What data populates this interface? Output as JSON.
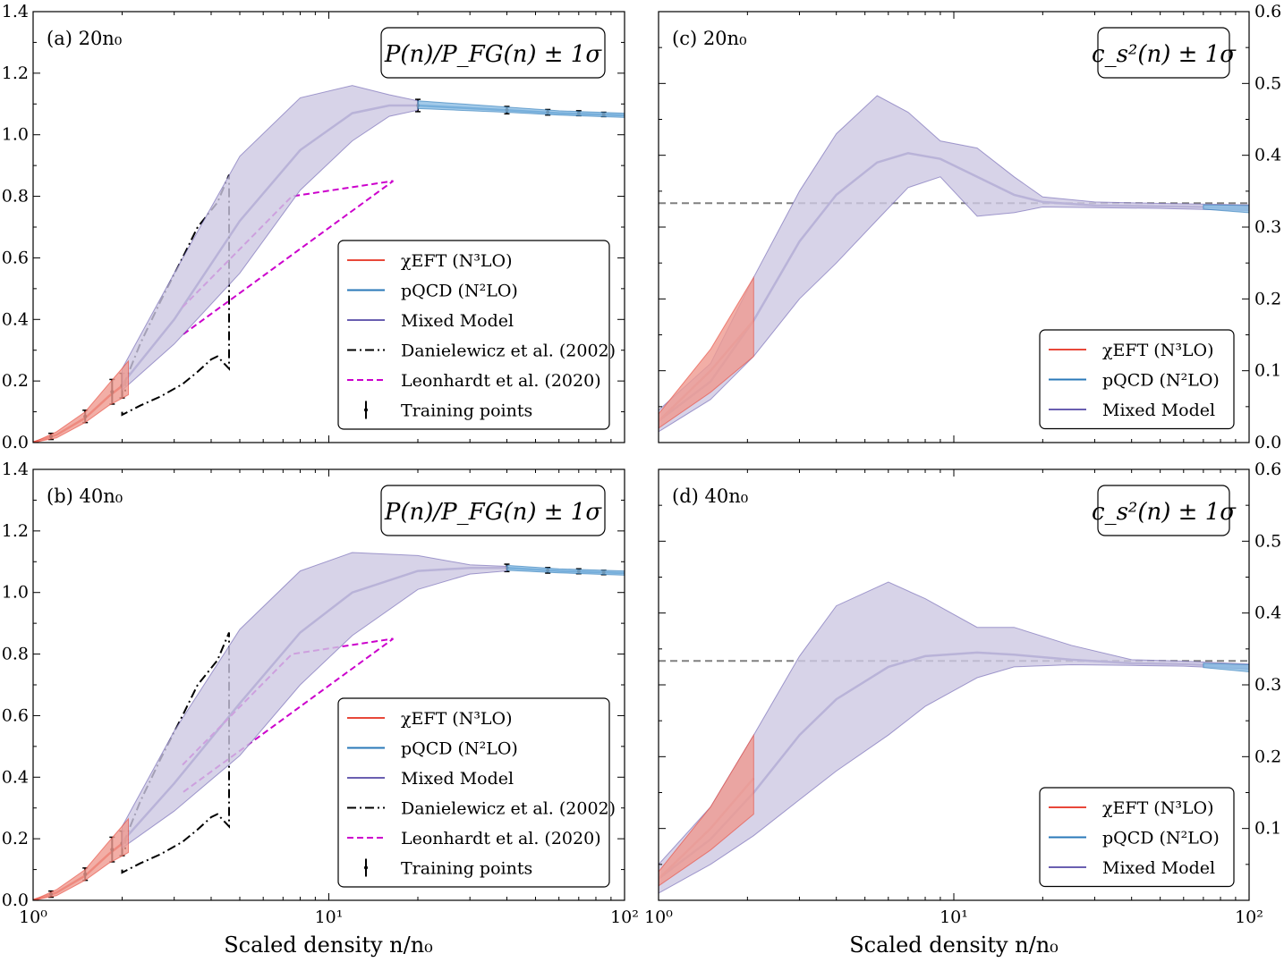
{
  "figure": {
    "xlabel": "Scaled density n/n₀",
    "x_tick_labels": [
      "10⁰",
      "10¹",
      "10²"
    ]
  },
  "colors": {
    "chieft": "#e8483a",
    "chieft_fill": "#ef9a90",
    "pqcd": "#2a78b8",
    "pqcd_fill": "#8bbde4",
    "mixed": "#6a5fb0",
    "mixed_fill": "#cdc8e2",
    "danielewicz": "#000000",
    "leonhardt": "#cc00cc",
    "conformal": "#808080"
  },
  "panels": [
    {
      "id": "a",
      "label": "(a) 20n₀",
      "box_title": "P(n)/P_FG(n) ± 1σ"
    },
    {
      "id": "c",
      "label": "(c) 20n₀",
      "box_title": "c_s²(n) ± 1σ"
    },
    {
      "id": "b",
      "label": "(b) 40n₀",
      "box_title": "P(n)/P_FG(n) ± 1σ"
    },
    {
      "id": "d",
      "label": "(d) 40n₀",
      "box_title": "c_s²(n) ± 1σ"
    }
  ],
  "legend_pressure": [
    "χEFT (N³LO)",
    "pQCD (N²LO)",
    "Mixed Model",
    "Danielewicz et al. (2002)",
    "Leonhardt et al. (2020)",
    "Training points"
  ],
  "legend_sound": [
    "χEFT (N³LO)",
    "pQCD (N²LO)",
    "Mixed Model"
  ],
  "chart_data": [
    {
      "panel": "a",
      "type": "line",
      "xscale": "log",
      "xlim": [
        1,
        100
      ],
      "ylim": [
        0,
        1.4
      ],
      "y_ticks": [
        "0.0",
        "0.2",
        "0.4",
        "0.6",
        "0.8",
        "1.0",
        "1.2",
        "1.4"
      ],
      "series": [
        {
          "name": "Mixed Model",
          "x": [
            2,
            3,
            5,
            8,
            12,
            16,
            20
          ],
          "y": [
            0.19,
            0.4,
            0.72,
            0.95,
            1.07,
            1.095,
            1.095
          ],
          "lower": [
            0.17,
            0.32,
            0.55,
            0.82,
            0.98,
            1.06,
            1.08
          ],
          "upper": [
            0.24,
            0.55,
            0.93,
            1.12,
            1.16,
            1.13,
            1.11
          ]
        },
        {
          "name": "χEFT (N³LO)",
          "x": [
            1,
            1.2,
            1.5,
            1.8,
            2.1
          ],
          "y": [
            0.0,
            0.025,
            0.08,
            0.15,
            0.2
          ],
          "lower": [
            0.0,
            0.015,
            0.065,
            0.12,
            0.155
          ],
          "upper": [
            0.0,
            0.035,
            0.1,
            0.19,
            0.265
          ]
        },
        {
          "name": "pQCD (N²LO)",
          "x": [
            20,
            40,
            60,
            100
          ],
          "y": [
            1.095,
            1.08,
            1.07,
            1.063
          ],
          "lower": [
            1.085,
            1.073,
            1.064,
            1.056
          ],
          "upper": [
            1.11,
            1.09,
            1.078,
            1.07
          ]
        },
        {
          "name": "Danielewicz et al. (2002)",
          "x": [
            2.0,
            2.0,
            2.3,
            2.7,
            3.2,
            3.6,
            4.0,
            4.2,
            4.6,
            4.6,
            4.2,
            3.6,
            3.2,
            2.7,
            2.3,
            2.05,
            2.05
          ],
          "y": [
            0.1,
            0.09,
            0.12,
            0.15,
            0.19,
            0.23,
            0.27,
            0.28,
            0.24,
            0.87,
            0.78,
            0.7,
            0.6,
            0.46,
            0.32,
            0.2,
            0.16
          ]
        },
        {
          "name": "Leonhardt et al. (2020)",
          "x": [
            3.2,
            7.5,
            16.5,
            3.2
          ],
          "y": [
            0.44,
            0.8,
            0.85,
            0.35
          ]
        },
        {
          "name": "Training points",
          "x": [
            1.15,
            1.5,
            1.85,
            2.0,
            20,
            40,
            55,
            70,
            85
          ],
          "y": [
            0.02,
            0.085,
            0.165,
            0.185,
            1.095,
            1.08,
            1.073,
            1.07,
            1.066
          ],
          "err": [
            0.01,
            0.02,
            0.04,
            0.04,
            0.02,
            0.012,
            0.009,
            0.008,
            0.007
          ]
        }
      ]
    },
    {
      "panel": "c",
      "type": "line",
      "xscale": "log",
      "xlim": [
        1,
        100
      ],
      "ylim": [
        0,
        0.6
      ],
      "y_ticks": [
        "0.0",
        "0.1",
        "0.2",
        "0.3",
        "0.4",
        "0.5",
        "0.6"
      ],
      "conformal_limit": 0.3333,
      "series": [
        {
          "name": "Mixed Model",
          "x": [
            1,
            1.5,
            2.1,
            3,
            4,
            5.5,
            7,
            9,
            12,
            16,
            20,
            30,
            50,
            100
          ],
          "y": [
            0.03,
            0.085,
            0.17,
            0.28,
            0.345,
            0.39,
            0.403,
            0.395,
            0.37,
            0.345,
            0.335,
            0.33,
            0.329,
            0.327
          ],
          "lower": [
            0.015,
            0.06,
            0.12,
            0.2,
            0.25,
            0.31,
            0.355,
            0.37,
            0.315,
            0.32,
            0.328,
            0.327,
            0.326,
            0.323
          ],
          "upper": [
            0.045,
            0.11,
            0.23,
            0.35,
            0.43,
            0.483,
            0.46,
            0.42,
            0.41,
            0.37,
            0.342,
            0.335,
            0.333,
            0.331
          ]
        },
        {
          "name": "χEFT (N³LO)",
          "x": [
            1,
            1.5,
            2.1
          ],
          "y": [
            0.03,
            0.1,
            0.17
          ],
          "lower": [
            0.02,
            0.07,
            0.12
          ],
          "upper": [
            0.04,
            0.13,
            0.23
          ]
        },
        {
          "name": "pQCD (N²LO)",
          "x": [
            70,
            100
          ],
          "y": [
            0.328,
            0.325
          ],
          "lower": [
            0.325,
            0.32
          ],
          "upper": [
            0.331,
            0.33
          ]
        }
      ]
    },
    {
      "panel": "b",
      "type": "line",
      "xscale": "log",
      "xlim": [
        1,
        100
      ],
      "ylim": [
        0,
        1.4
      ],
      "y_ticks": [
        "0.0",
        "0.2",
        "0.4",
        "0.6",
        "0.8",
        "1.0",
        "1.2",
        "1.4"
      ],
      "series": [
        {
          "name": "Mixed Model",
          "x": [
            2,
            3,
            5,
            8,
            12,
            20,
            30,
            40
          ],
          "y": [
            0.19,
            0.38,
            0.64,
            0.87,
            1.0,
            1.07,
            1.08,
            1.08
          ],
          "lower": [
            0.17,
            0.29,
            0.47,
            0.7,
            0.86,
            1.01,
            1.06,
            1.07
          ],
          "upper": [
            0.24,
            0.55,
            0.88,
            1.07,
            1.13,
            1.12,
            1.09,
            1.085
          ]
        },
        {
          "name": "χEFT (N³LO)",
          "x": [
            1,
            1.2,
            1.5,
            1.8,
            2.1
          ],
          "y": [
            0.0,
            0.025,
            0.08,
            0.15,
            0.2
          ],
          "lower": [
            0.0,
            0.015,
            0.065,
            0.12,
            0.155
          ],
          "upper": [
            0.0,
            0.035,
            0.1,
            0.19,
            0.265
          ]
        },
        {
          "name": "pQCD (N²LO)",
          "x": [
            40,
            60,
            100
          ],
          "y": [
            1.08,
            1.07,
            1.063
          ],
          "lower": [
            1.072,
            1.064,
            1.056
          ],
          "upper": [
            1.088,
            1.077,
            1.07
          ]
        },
        {
          "name": "Danielewicz et al. (2002)",
          "x": [
            2.0,
            2.0,
            2.3,
            2.7,
            3.2,
            3.6,
            4.0,
            4.2,
            4.6,
            4.6,
            4.2,
            3.6,
            3.2,
            2.7,
            2.3,
            2.05,
            2.05
          ],
          "y": [
            0.1,
            0.09,
            0.12,
            0.15,
            0.19,
            0.23,
            0.27,
            0.28,
            0.24,
            0.87,
            0.78,
            0.7,
            0.6,
            0.46,
            0.32,
            0.2,
            0.16
          ]
        },
        {
          "name": "Leonhardt et al. (2020)",
          "x": [
            3.2,
            7.5,
            16.5,
            3.2
          ],
          "y": [
            0.44,
            0.8,
            0.85,
            0.35
          ]
        },
        {
          "name": "Training points",
          "x": [
            1.15,
            1.5,
            1.85,
            2.0,
            40,
            55,
            70,
            85
          ],
          "y": [
            0.02,
            0.085,
            0.165,
            0.185,
            1.08,
            1.072,
            1.069,
            1.065
          ],
          "err": [
            0.01,
            0.02,
            0.04,
            0.04,
            0.012,
            0.009,
            0.008,
            0.007
          ]
        }
      ]
    },
    {
      "panel": "d",
      "type": "line",
      "xscale": "log",
      "xlim": [
        1,
        100
      ],
      "ylim": [
        0,
        0.6
      ],
      "y_ticks": [
        "",
        "0.1",
        "0.2",
        "0.3",
        "0.4",
        "0.5",
        "0.6"
      ],
      "conformal_limit": 0.3333,
      "series": [
        {
          "name": "Mixed Model",
          "x": [
            1,
            1.5,
            2.1,
            3,
            4,
            6,
            8,
            12,
            16,
            25,
            40,
            60,
            100
          ],
          "y": [
            0.03,
            0.085,
            0.15,
            0.23,
            0.28,
            0.325,
            0.34,
            0.345,
            0.342,
            0.335,
            0.33,
            0.329,
            0.325
          ],
          "lower": [
            0.01,
            0.05,
            0.09,
            0.14,
            0.18,
            0.23,
            0.27,
            0.31,
            0.325,
            0.328,
            0.327,
            0.326,
            0.322
          ],
          "upper": [
            0.05,
            0.13,
            0.23,
            0.34,
            0.41,
            0.443,
            0.42,
            0.38,
            0.38,
            0.355,
            0.335,
            0.333,
            0.329
          ]
        },
        {
          "name": "χEFT (N³LO)",
          "x": [
            1,
            1.5,
            2.1
          ],
          "y": [
            0.03,
            0.1,
            0.17
          ],
          "lower": [
            0.02,
            0.07,
            0.12
          ],
          "upper": [
            0.04,
            0.13,
            0.23
          ]
        },
        {
          "name": "pQCD (N²LO)",
          "x": [
            70,
            100
          ],
          "y": [
            0.327,
            0.323
          ],
          "lower": [
            0.324,
            0.318
          ],
          "upper": [
            0.33,
            0.328
          ]
        }
      ]
    }
  ]
}
